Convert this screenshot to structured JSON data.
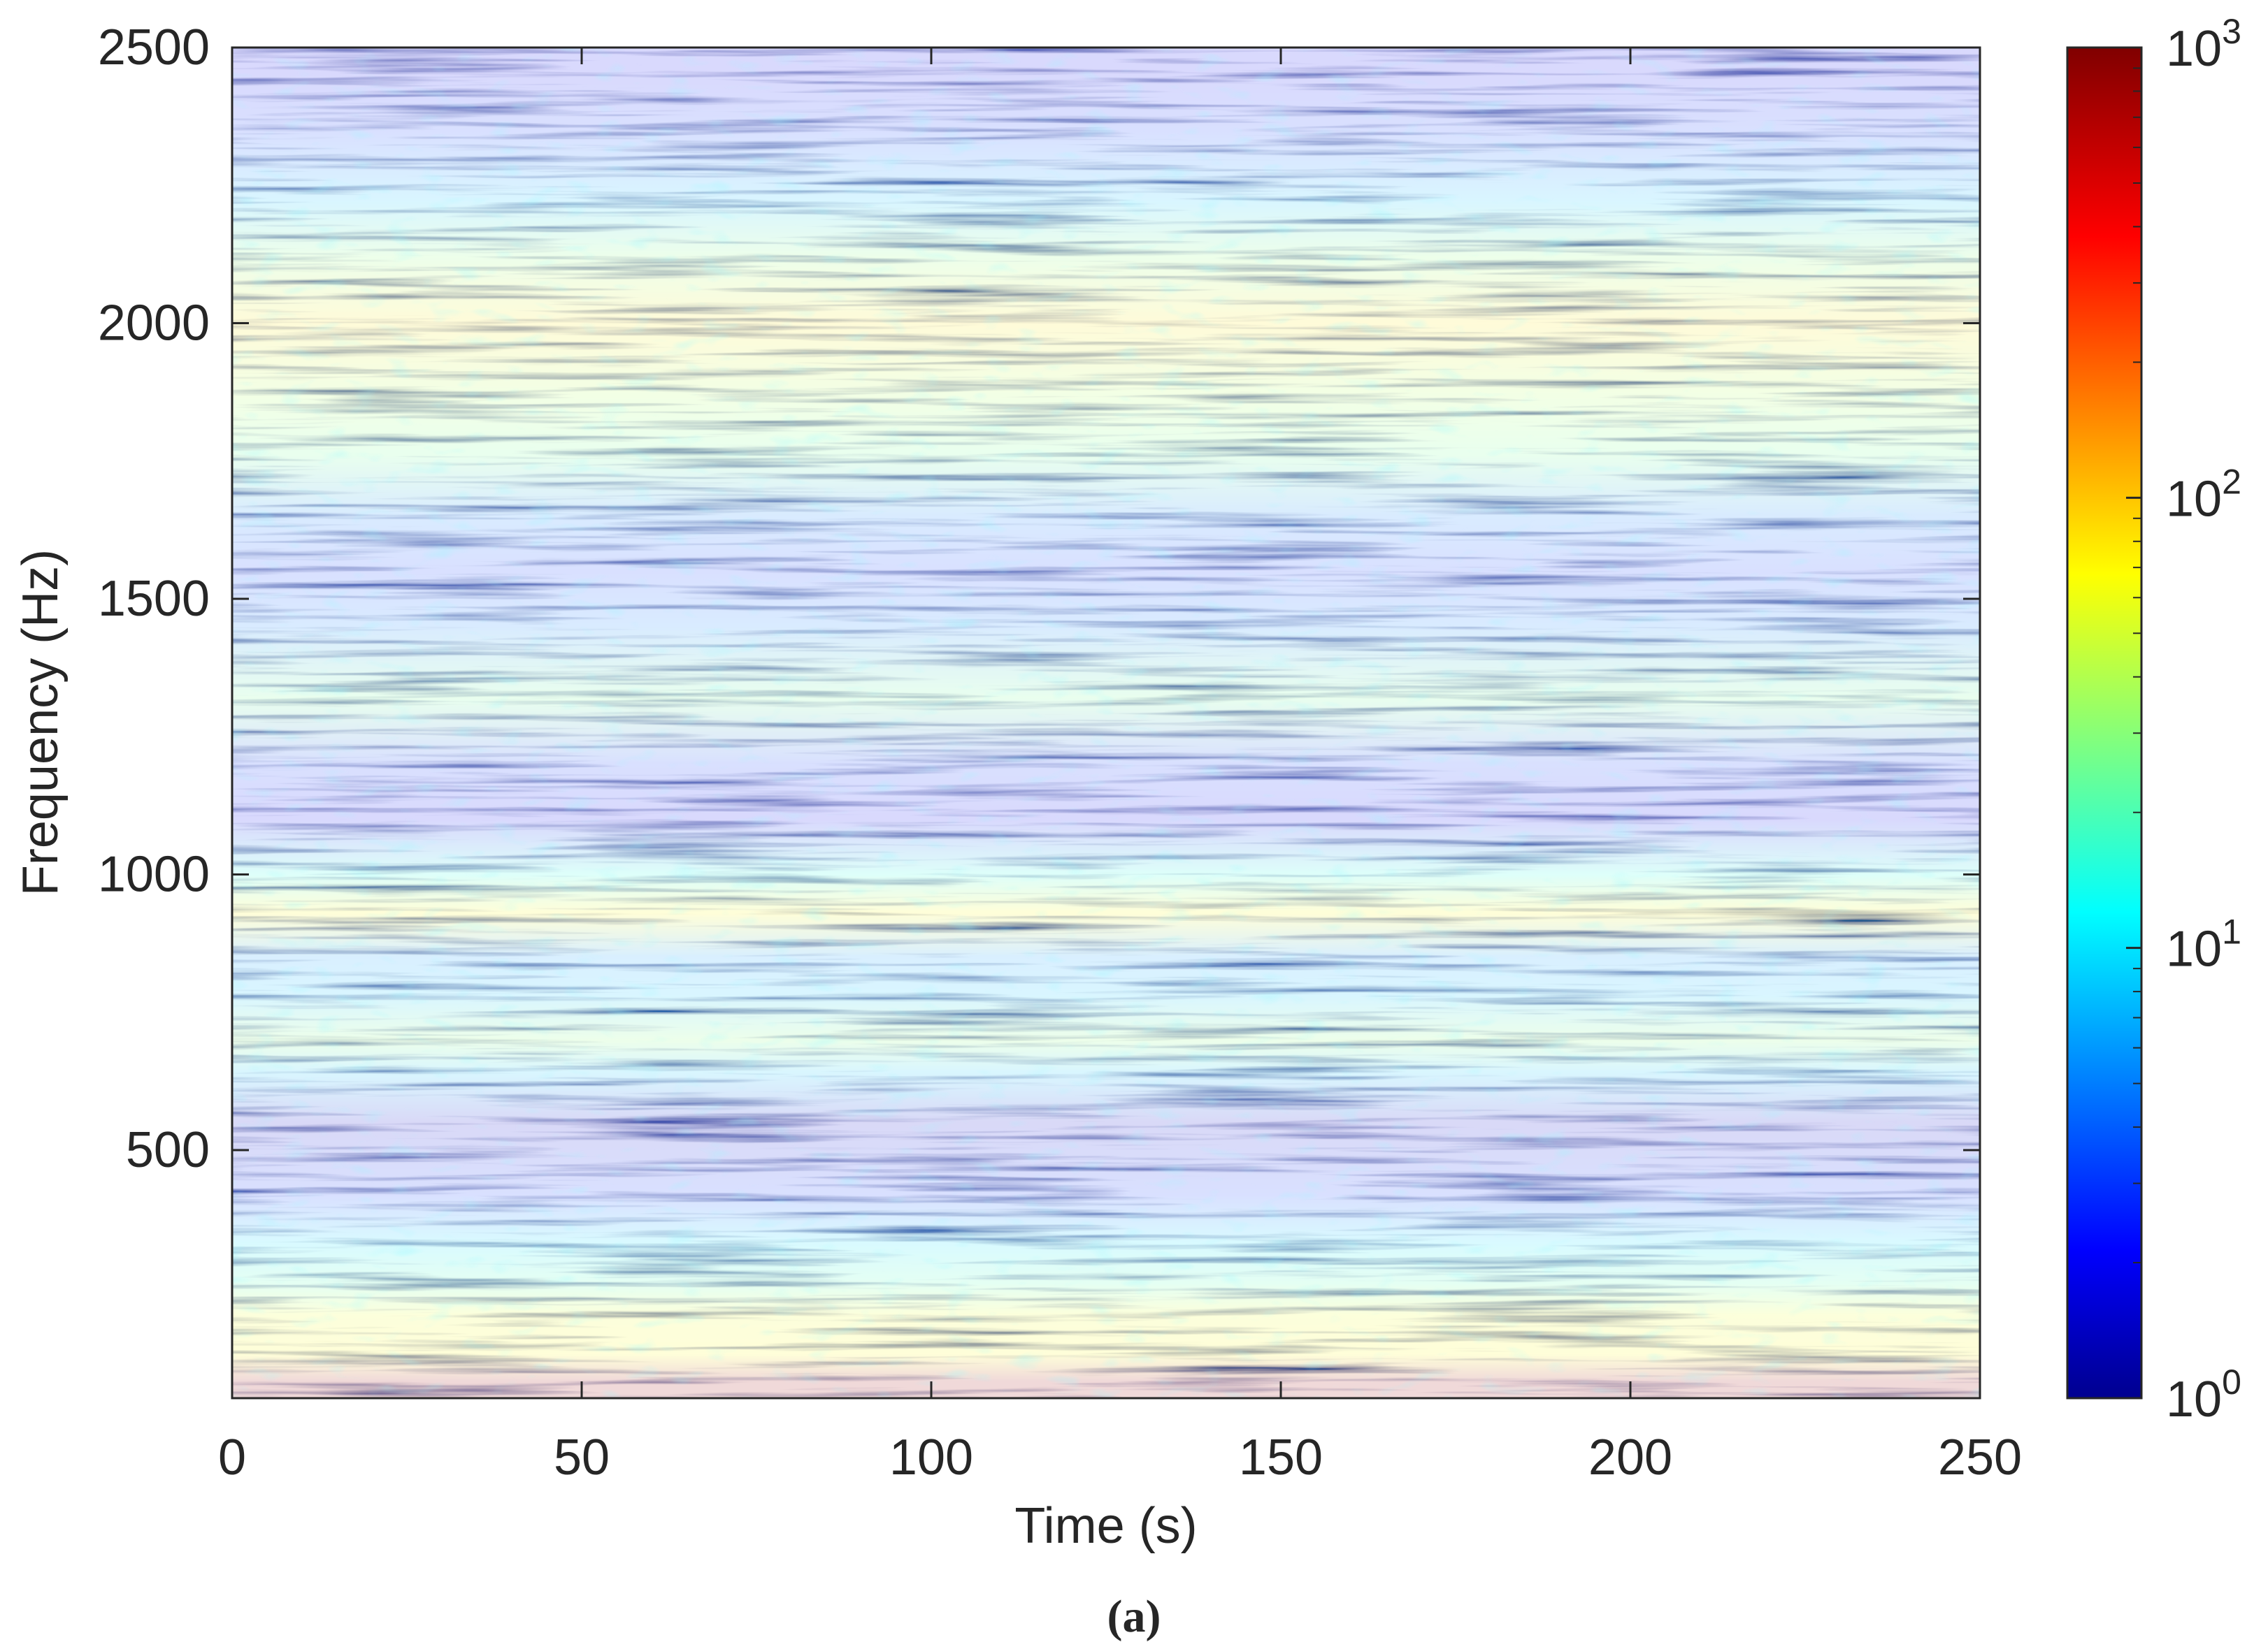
{
  "chart_data": {
    "type": "heatmap",
    "title": "",
    "xlabel": "Time (s)",
    "ylabel": "Frequency (Hz)",
    "xlim": [
      0,
      250
    ],
    "ylim": [
      50,
      2500
    ],
    "x_ticks": [
      0,
      50,
      100,
      150,
      200,
      250
    ],
    "y_ticks": [
      500,
      1000,
      1500,
      2000,
      2500
    ],
    "colorbar": {
      "scale": "log",
      "range": [
        1,
        1000
      ],
      "ticks": [
        {
          "base": "10",
          "exp": "0",
          "value": 1
        },
        {
          "base": "10",
          "exp": "1",
          "value": 10
        },
        {
          "base": "10",
          "exp": "2",
          "value": 100
        },
        {
          "base": "10",
          "exp": "3",
          "value": 1000
        }
      ],
      "colormap": "jet"
    },
    "grid": false,
    "bands": [
      {
        "freq": 80,
        "level": 800
      },
      {
        "freq": 130,
        "level": 70
      },
      {
        "freq": 200,
        "level": 60
      },
      {
        "freq": 260,
        "level": 20
      },
      {
        "freq": 330,
        "level": 10
      },
      {
        "freq": 420,
        "level": 3
      },
      {
        "freq": 550,
        "level": 1.5
      },
      {
        "freq": 640,
        "level": 8
      },
      {
        "freq": 700,
        "level": 30
      },
      {
        "freq": 780,
        "level": 8
      },
      {
        "freq": 850,
        "level": 6
      },
      {
        "freq": 930,
        "level": 70
      },
      {
        "freq": 1000,
        "level": 15
      },
      {
        "freq": 1100,
        "level": 2
      },
      {
        "freq": 1200,
        "level": 3
      },
      {
        "freq": 1320,
        "level": 25
      },
      {
        "freq": 1450,
        "level": 5
      },
      {
        "freq": 1550,
        "level": 3
      },
      {
        "freq": 1650,
        "level": 5
      },
      {
        "freq": 1760,
        "level": 25
      },
      {
        "freq": 1880,
        "level": 40
      },
      {
        "freq": 2000,
        "level": 80
      },
      {
        "freq": 2120,
        "level": 30
      },
      {
        "freq": 2220,
        "level": 8
      },
      {
        "freq": 2350,
        "level": 3
      },
      {
        "freq": 2460,
        "level": 2
      }
    ]
  },
  "caption": "(a)"
}
